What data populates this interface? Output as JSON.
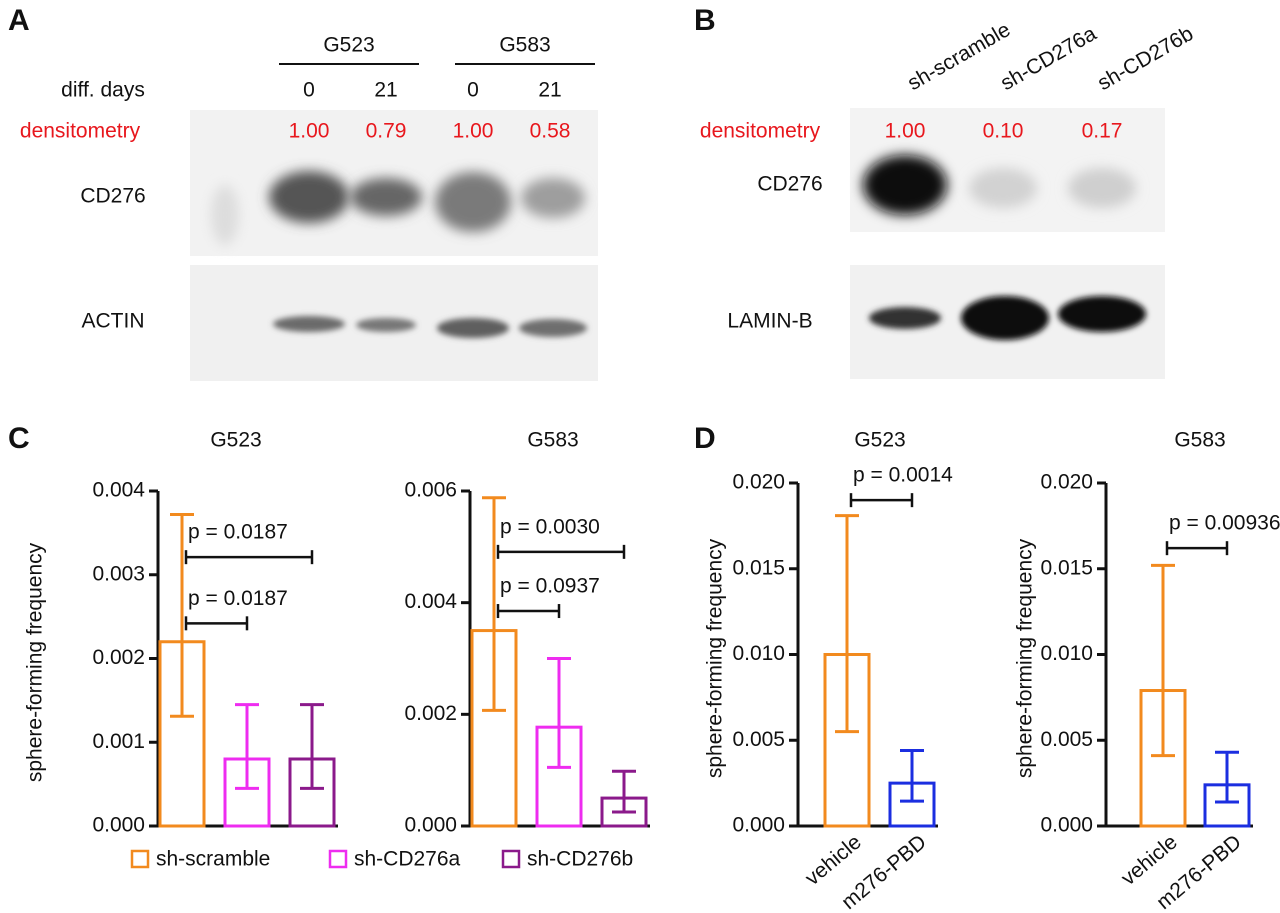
{
  "panels": {
    "a": {
      "letter": "A",
      "groups": [
        "G523",
        "G583"
      ],
      "days_label": "diff. days",
      "lanes": [
        "0",
        "21",
        "0",
        "21"
      ],
      "densitometry_label": "densitometry",
      "densitometry": [
        "1.00",
        "0.79",
        "1.00",
        "0.58"
      ],
      "rows": [
        "CD276",
        "ACTIN"
      ]
    },
    "b": {
      "letter": "B",
      "lanes": [
        "sh-scramble",
        "sh-CD276a",
        "sh-CD276b"
      ],
      "densitometry_label": "densitometry",
      "densitometry": [
        "1.00",
        "0.10",
        "0.17"
      ],
      "rows": [
        "CD276",
        "LAMIN-B"
      ]
    },
    "c": {
      "letter": "C"
    },
    "d": {
      "letter": "D"
    }
  },
  "chart_data": [
    {
      "type": "bar",
      "title": "G523",
      "ylabel": "sphere-forming frequency",
      "ylim": [
        0,
        0.004
      ],
      "yticks": [
        {
          "value": 0,
          "label": "0.000"
        },
        {
          "value": 0.001,
          "label": "0.001"
        },
        {
          "value": 0.002,
          "label": "0.002"
        },
        {
          "value": 0.003,
          "label": "0.003"
        },
        {
          "value": 0.004,
          "label": "0.004"
        }
      ],
      "series": [
        {
          "name": "sh-scramble",
          "color": "#f28a1e",
          "values": [
            0.0022
          ],
          "lower": [
            0.00131
          ],
          "upper": [
            0.00372
          ]
        },
        {
          "name": "sh-CD276a",
          "color": "#ee2cf0",
          "values": [
            0.0008
          ],
          "lower": [
            0.00045
          ],
          "upper": [
            0.00145
          ]
        },
        {
          "name": "sh-CD276b",
          "color": "#8b1a8b",
          "values": [
            0.0008
          ],
          "lower": [
            0.00045
          ],
          "upper": [
            0.00145
          ]
        }
      ],
      "annotations": [
        {
          "text": "p = 0.0187",
          "y": 0.00321
        },
        {
          "text": "p = 0.0187",
          "y": 0.00242
        }
      ]
    },
    {
      "type": "bar",
      "title": "G583",
      "ylim": [
        0,
        0.006
      ],
      "yticks": [
        {
          "value": 0,
          "label": "0.000"
        },
        {
          "value": 0.002,
          "label": "0.002"
        },
        {
          "value": 0.004,
          "label": "0.004"
        },
        {
          "value": 0.006,
          "label": "0.006"
        }
      ],
      "series": [
        {
          "color": "#f28a1e",
          "values": [
            0.0035
          ],
          "lower": [
            0.00207
          ],
          "upper": [
            0.00588
          ]
        },
        {
          "color": "#ee2cf0",
          "values": [
            0.00177
          ],
          "lower": [
            0.00105
          ],
          "upper": [
            0.003
          ]
        },
        {
          "color": "#8b1a8b",
          "values": [
            0.0005
          ],
          "lower": [
            0.00025
          ],
          "upper": [
            0.00098
          ]
        }
      ],
      "annotations": [
        {
          "text": "p = 0.0030",
          "y": 0.00491
        },
        {
          "text": "p = 0.0937",
          "y": 0.00385
        }
      ]
    },
    {
      "type": "bar",
      "title": "G523",
      "ylabel": "sphere-forming frequency",
      "ylim": [
        0,
        0.02
      ],
      "yticks": [
        {
          "value": 0,
          "label": "0.000"
        },
        {
          "value": 0.005,
          "label": "0.005"
        },
        {
          "value": 0.01,
          "label": "0.010"
        },
        {
          "value": 0.015,
          "label": "0.015"
        },
        {
          "value": 0.02,
          "label": "0.020"
        }
      ],
      "categories": [
        "vehicle",
        "m276-PBD"
      ],
      "colors": [
        "#f28a1e",
        "#1b2ee0"
      ],
      "values": [
        0.01,
        0.0025
      ],
      "lower": [
        0.0055,
        0.00145
      ],
      "upper": [
        0.0181,
        0.0044
      ],
      "annotations": [
        {
          "text": "p = 0.0014",
          "y": 0.019
        }
      ]
    },
    {
      "type": "bar",
      "title": "G583",
      "ylabel": "sphere-forming frequency",
      "ylim": [
        0,
        0.02
      ],
      "yticks": [
        {
          "value": 0,
          "label": "0.000"
        },
        {
          "value": 0.005,
          "label": "0.005"
        },
        {
          "value": 0.01,
          "label": "0.010"
        },
        {
          "value": 0.015,
          "label": "0.015"
        },
        {
          "value": 0.02,
          "label": "0.020"
        }
      ],
      "categories": [
        "vehicle",
        "m276-PBD"
      ],
      "colors": [
        "#f28a1e",
        "#1b2ee0"
      ],
      "values": [
        0.0079,
        0.0024
      ],
      "lower": [
        0.0041,
        0.0014
      ],
      "upper": [
        0.0152,
        0.0043
      ],
      "annotations": [
        {
          "text": "p = 0.00936",
          "y": 0.0162
        }
      ]
    }
  ]
}
